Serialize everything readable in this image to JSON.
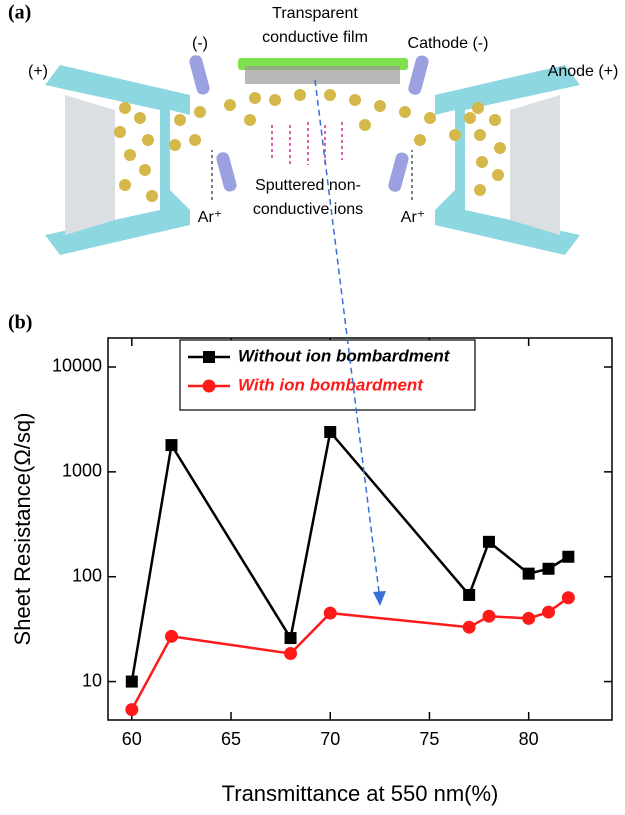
{
  "diagram": {
    "panel_label": "(a)",
    "film_label": [
      "Transparent",
      "conductive film"
    ],
    "cathode_left": "(-)",
    "cathode_right": "Cathode (-)",
    "anode_left": "(+)",
    "anode_right": "Anode (+)",
    "ions_label": [
      "Sputtered non-",
      "conductive ions"
    ],
    "ar_left": "Ar⁺",
    "ar_right": "Ar⁺"
  },
  "chart_data": {
    "type": "line",
    "panel_label": "(b)",
    "x_label": "Transmittance at 550 nm(%)",
    "y_label": "Sheet Resistance(Ω/sq)",
    "x": [
      60,
      62,
      68,
      70,
      77,
      78,
      80,
      81,
      82
    ],
    "series": [
      {
        "name": "Without ion bombardment",
        "color": "#000000",
        "marker": "square",
        "values": [
          10,
          1800,
          26,
          2400,
          67,
          215,
          107,
          119,
          155
        ]
      },
      {
        "name": "With ion bombardment",
        "color": "#ff1a1a",
        "marker": "circle",
        "values": [
          5.4,
          27,
          18.5,
          45,
          33,
          42,
          40,
          46,
          63
        ]
      }
    ],
    "xlim": [
      58.8,
      84.2
    ],
    "xticks": [
      60,
      65,
      70,
      75,
      80
    ],
    "ylim": [
      4.3,
      18900
    ],
    "yticks": [
      10,
      100,
      1000,
      10000
    ],
    "log_y": true,
    "grid": false,
    "legend": "top-left"
  }
}
